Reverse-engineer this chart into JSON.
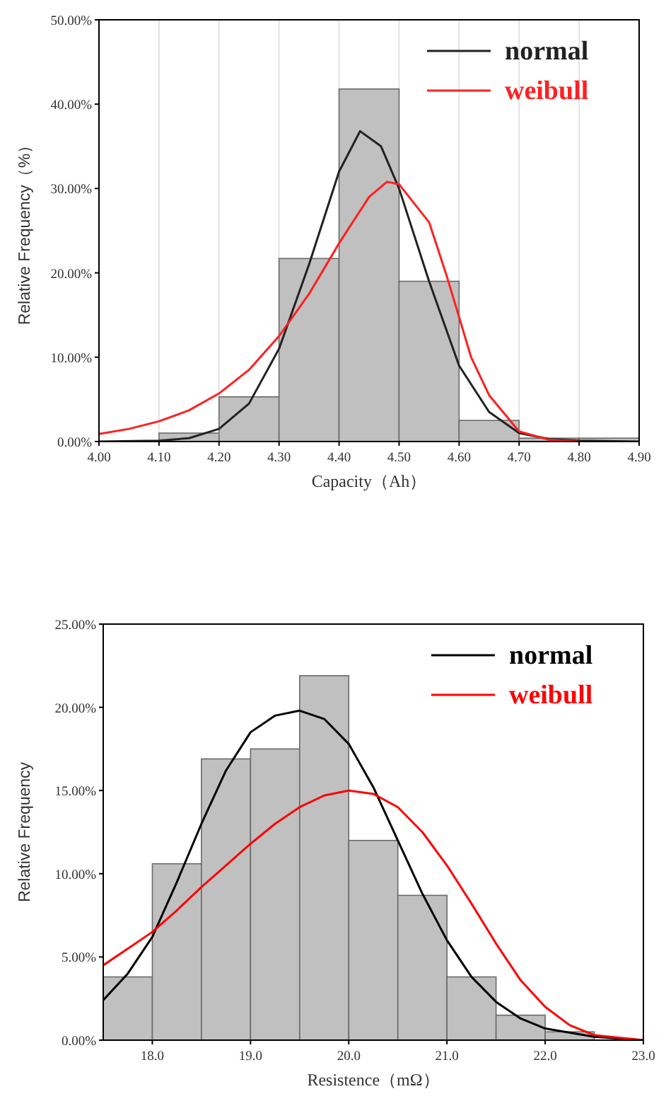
{
  "chart_data": [
    {
      "type": "histogram",
      "xlabel": "Capacity（Ah）",
      "ylabel": "Relative Frequency（%）",
      "color": "#c0c0c0",
      "bins": [
        4.1,
        4.2,
        4.3,
        4.4,
        4.5,
        4.6,
        4.7,
        4.8,
        4.9
      ],
      "values": [
        1.0,
        5.3,
        21.7,
        41.8,
        19.0,
        2.5,
        0.4,
        0.4
      ],
      "series": [
        {
          "type": "line",
          "name": "normal",
          "color": "#222222",
          "x": [
            4.0,
            4.1,
            4.15,
            4.2,
            4.25,
            4.3,
            4.35,
            4.4,
            4.435,
            4.47,
            4.5,
            4.55,
            4.6,
            4.65,
            4.7,
            4.75,
            4.8,
            4.9
          ],
          "values": [
            0,
            0.1,
            0.4,
            1.5,
            4.5,
            11,
            21,
            32,
            36.8,
            35,
            30,
            19,
            9,
            3.5,
            1,
            0.3,
            0.1,
            0
          ]
        },
        {
          "type": "line",
          "name": "weibull",
          "color": "#ff2020",
          "x": [
            4.0,
            4.05,
            4.1,
            4.15,
            4.2,
            4.25,
            4.3,
            4.35,
            4.4,
            4.45,
            4.48,
            4.5,
            4.55,
            4.58,
            4.62,
            4.65,
            4.7,
            4.75,
            4.8
          ],
          "values": [
            0.9,
            1.5,
            2.4,
            3.7,
            5.7,
            8.5,
            12.5,
            17.5,
            23.5,
            29,
            30.8,
            30.5,
            26,
            19.5,
            10,
            5.5,
            1.2,
            0.2,
            0
          ]
        }
      ],
      "xlim": [
        4.0,
        4.9
      ],
      "xticks": [
        {
          "value": 4.0,
          "label": "4.00"
        },
        {
          "value": 4.1,
          "label": "4.10"
        },
        {
          "value": 4.2,
          "label": "4.20"
        },
        {
          "value": 4.3,
          "label": "4.30"
        },
        {
          "value": 4.4,
          "label": "4.40"
        },
        {
          "value": 4.5,
          "label": "4.50"
        },
        {
          "value": 4.6,
          "label": "4.60"
        },
        {
          "value": 4.7,
          "label": "4.70"
        },
        {
          "value": 4.8,
          "label": "4.80"
        },
        {
          "value": 4.9,
          "label": "4.90"
        }
      ],
      "ylim": [
        0,
        50
      ],
      "yticks": [
        {
          "value": 0,
          "label": "0.00%"
        },
        {
          "value": 10,
          "label": "10.00%"
        },
        {
          "value": 20,
          "label": "20.00%"
        },
        {
          "value": 30,
          "label": "30.00%"
        },
        {
          "value": 40,
          "label": "40.00%"
        },
        {
          "value": 50,
          "label": "50.00%"
        }
      ],
      "grid": "x",
      "legend": "top right"
    },
    {
      "type": "histogram",
      "xlabel": "Resistence（mΩ）",
      "ylabel": "Relative Frequency",
      "color": "#c0c0c0",
      "bins": [
        17.5,
        18.0,
        18.5,
        19.0,
        19.5,
        20.0,
        20.5,
        21.0,
        21.5,
        22.0,
        22.5
      ],
      "values": [
        3.8,
        10.6,
        16.9,
        17.5,
        21.9,
        12.0,
        8.7,
        3.8,
        1.5,
        0.5
      ],
      "series": [
        {
          "type": "line",
          "name": "normal",
          "color": "#000000",
          "x": [
            17.5,
            17.75,
            18.0,
            18.25,
            18.5,
            18.75,
            19.0,
            19.25,
            19.5,
            19.75,
            20.0,
            20.25,
            20.5,
            20.75,
            21.0,
            21.25,
            21.5,
            21.75,
            22.0,
            22.5,
            23.0
          ],
          "values": [
            2.4,
            4,
            6.2,
            9.5,
            13,
            16.2,
            18.5,
            19.5,
            19.8,
            19.3,
            17.8,
            15.2,
            12,
            8.8,
            6,
            3.8,
            2.3,
            1.3,
            0.7,
            0.2,
            0
          ]
        },
        {
          "type": "line",
          "name": "weibull",
          "color": "#ff0000",
          "x": [
            17.5,
            17.75,
            18.0,
            18.25,
            18.5,
            18.75,
            19.0,
            19.25,
            19.5,
            19.75,
            20.0,
            20.25,
            20.5,
            20.75,
            21.0,
            21.25,
            21.5,
            21.75,
            22.0,
            22.25,
            22.5,
            23.0
          ],
          "values": [
            4.5,
            5.5,
            6.5,
            7.8,
            9.2,
            10.5,
            11.8,
            13,
            14,
            14.7,
            15,
            14.8,
            14,
            12.5,
            10.5,
            8.2,
            5.8,
            3.6,
            2,
            0.9,
            0.3,
            0
          ]
        }
      ],
      "xlim": [
        17.5,
        23.0
      ],
      "xticks": [
        {
          "value": 18,
          "label": "18.0"
        },
        {
          "value": 19,
          "label": "19.0"
        },
        {
          "value": 20,
          "label": "20.0"
        },
        {
          "value": 21,
          "label": "21.0"
        },
        {
          "value": 22,
          "label": "22.0"
        },
        {
          "value": 23,
          "label": "23.0"
        }
      ],
      "ylim": [
        0,
        25
      ],
      "yticks": [
        {
          "value": 0,
          "label": "0.00%"
        },
        {
          "value": 5,
          "label": "5.00%"
        },
        {
          "value": 10,
          "label": "10.00%"
        },
        {
          "value": 15,
          "label": "15.00%"
        },
        {
          "value": 20,
          "label": "20.00%"
        },
        {
          "value": 25,
          "label": "25.00%"
        }
      ],
      "legend": "top right"
    }
  ]
}
